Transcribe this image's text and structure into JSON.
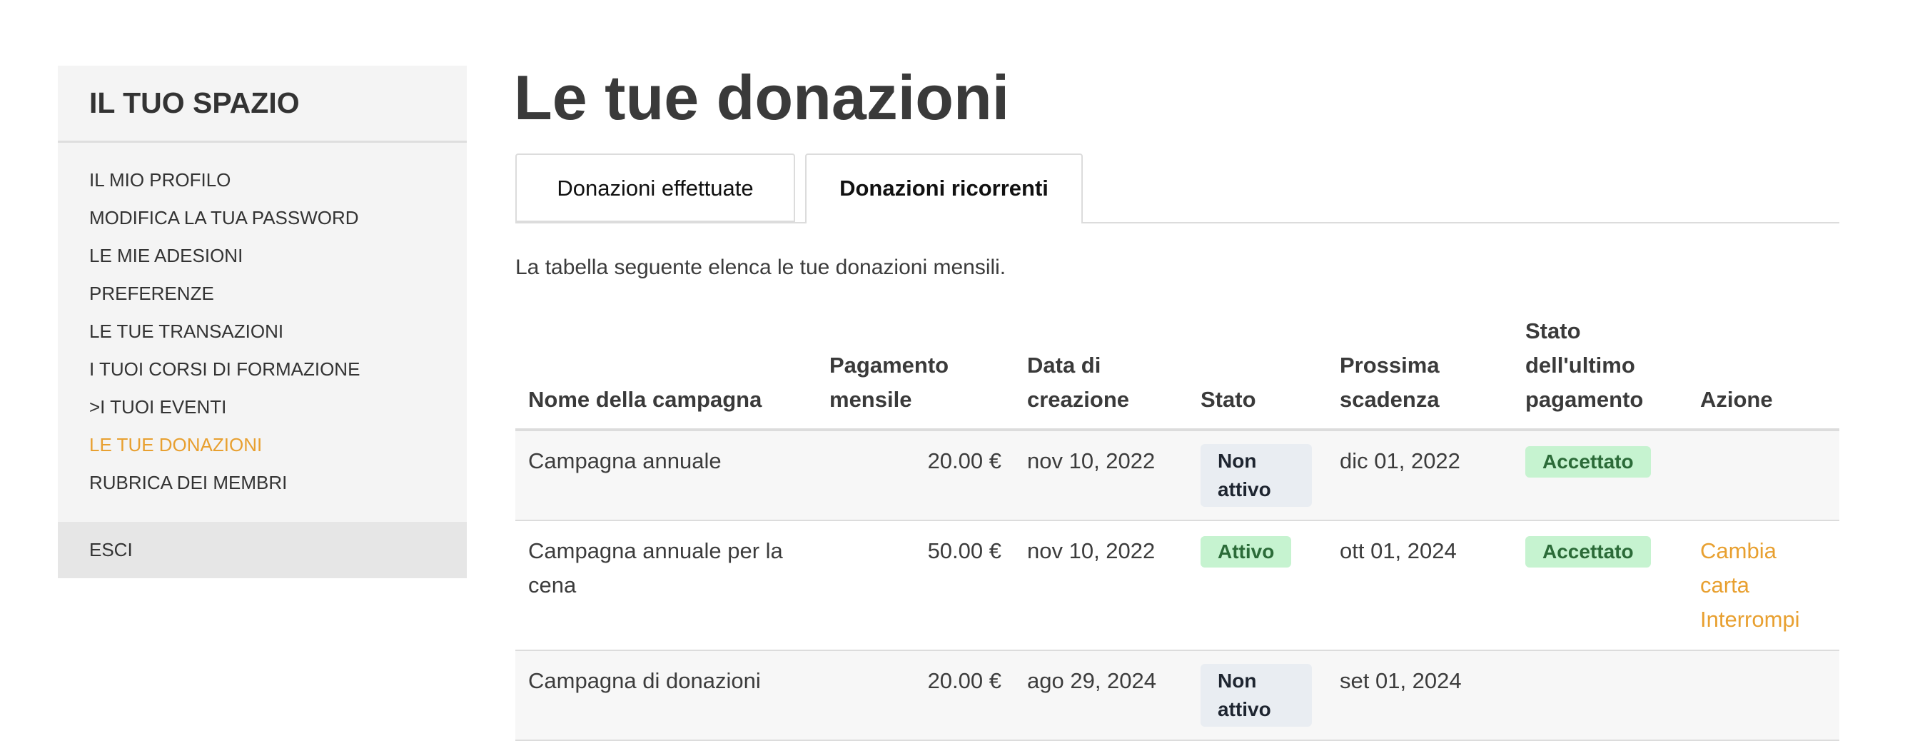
{
  "sidebar": {
    "title": "IL TUO SPAZIO",
    "items": [
      {
        "label": "IL MIO PROFILO"
      },
      {
        "label": "MODIFICA LA TUA PASSWORD"
      },
      {
        "label": "LE MIE ADESIONI"
      },
      {
        "label": "PREFERENZE"
      },
      {
        "label": "LE TUE TRANSAZIONI"
      },
      {
        "label": "I TUOI CORSI DI FORMAZIONE"
      },
      {
        "label": ">I TUOI EVENTI"
      },
      {
        "label": "LE TUE DONAZIONI",
        "active": true
      },
      {
        "label": "RUBRICA DEI MEMBRI"
      }
    ],
    "exit": "ESCI"
  },
  "main": {
    "title": "Le tue donazioni",
    "tabs": [
      {
        "label": "Donazioni effettuate"
      },
      {
        "label": "Donazioni ricorrenti",
        "active": true
      }
    ],
    "intro": "La tabella seguente elenca le tue donazioni mensili.",
    "table": {
      "headers": [
        "Nome della campagna",
        "Pagamento mensile",
        "Data di creazione",
        "Stato",
        "Prossima scadenza",
        "Stato dell'ultimo pagamento",
        "Azione"
      ],
      "rows": [
        {
          "name": "Campagna annuale",
          "amount": "20.00 €",
          "created": "nov 10, 2022",
          "status": "Non attivo",
          "next": "dic 01, 2022",
          "last": "Accettato",
          "actions": []
        },
        {
          "name": "Campagna annuale per la cena",
          "amount": "50.00 €",
          "created": "nov 10, 2022",
          "status": "Attivo",
          "next": "ott 01, 2024",
          "last": "Accettato",
          "actions": [
            "Cambia carta",
            "Interrompi"
          ]
        },
        {
          "name": "Campagna di donazioni",
          "amount": "20.00 €",
          "created": "ago 29, 2024",
          "status": "Non attivo",
          "next": "set 01, 2024",
          "last": "",
          "actions": []
        }
      ]
    }
  },
  "colors": {
    "accent": "#e8a030",
    "badge_active_bg": "#c6f3d0",
    "badge_inactive_bg": "#e9edf2"
  }
}
